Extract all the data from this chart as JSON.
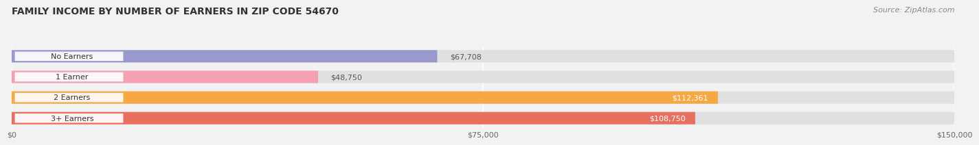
{
  "title": "FAMILY INCOME BY NUMBER OF EARNERS IN ZIP CODE 54670",
  "source": "Source: ZipAtlas.com",
  "categories": [
    "No Earners",
    "1 Earner",
    "2 Earners",
    "3+ Earners"
  ],
  "values": [
    67708,
    48750,
    112361,
    108750
  ],
  "bar_colors": [
    "#9999cc",
    "#f4a0b5",
    "#f5a843",
    "#e87060"
  ],
  "label_colors": [
    "#555555",
    "#555555",
    "#ffffff",
    "#ffffff"
  ],
  "bar_labels": [
    "$67,708",
    "$48,750",
    "$112,361",
    "$108,750"
  ],
  "xlim": [
    0,
    150000
  ],
  "xticks": [
    0,
    75000,
    150000
  ],
  "xtick_labels": [
    "$0",
    "$75,000",
    "$150,000"
  ],
  "background_color": "#f2f2f2",
  "bar_bg_color": "#e0e0e0",
  "title_fontsize": 10,
  "source_fontsize": 8
}
